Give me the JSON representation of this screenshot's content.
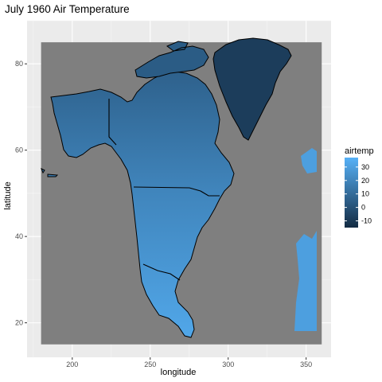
{
  "chart_data": {
    "type": "heatmap",
    "title": "July 1960 Air Temperature",
    "xlabel": "longitude",
    "ylabel": "latitude",
    "xlim": [
      171,
      366
    ],
    "ylim": [
      12,
      90
    ],
    "data_extent": {
      "lon": [
        180,
        360
      ],
      "lat": [
        15,
        85
      ]
    },
    "x_ticks": [
      200,
      250,
      300,
      350
    ],
    "y_ticks": [
      20,
      40,
      60,
      80
    ],
    "grid": true,
    "panel_color": "#ebebeb",
    "missing_color": "#7f7f7f",
    "legend": {
      "title": "airtemp",
      "position": "right",
      "ticks": [
        30,
        20,
        10,
        0,
        -10
      ],
      "range": [
        -15,
        37
      ],
      "low_color": "#132b43",
      "high_color": "#56b1f7"
    }
  }
}
